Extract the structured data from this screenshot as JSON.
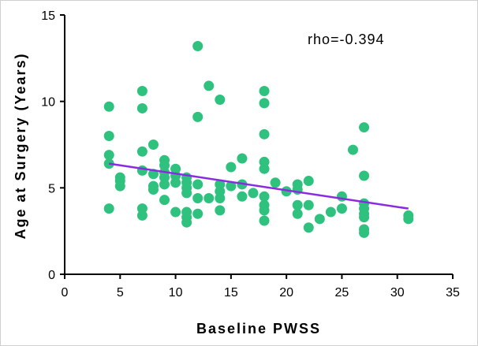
{
  "chart_data": {
    "type": "scatter",
    "xlabel": "Baseline PWSS",
    "ylabel": "Age at Surgery (Years)",
    "xlim": [
      0,
      35
    ],
    "ylim": [
      0,
      15
    ],
    "x_ticks": [
      0,
      5,
      10,
      15,
      20,
      25,
      30,
      35
    ],
    "y_ticks": [
      0,
      5,
      10,
      15
    ],
    "annotation": "rho=-0.394",
    "grid": false,
    "point_color": "#2ec27e",
    "trend_color": "#8a2be2",
    "points": [
      {
        "x": 4,
        "y": 9.7
      },
      {
        "x": 4,
        "y": 8.0
      },
      {
        "x": 4,
        "y": 6.9
      },
      {
        "x": 4,
        "y": 6.4
      },
      {
        "x": 4,
        "y": 3.8
      },
      {
        "x": 5,
        "y": 5.6
      },
      {
        "x": 5,
        "y": 5.4
      },
      {
        "x": 5,
        "y": 5.1
      },
      {
        "x": 7,
        "y": 10.6
      },
      {
        "x": 7,
        "y": 9.6
      },
      {
        "x": 7,
        "y": 7.1
      },
      {
        "x": 7,
        "y": 6.0
      },
      {
        "x": 7,
        "y": 3.8
      },
      {
        "x": 7,
        "y": 3.4
      },
      {
        "x": 8,
        "y": 7.5
      },
      {
        "x": 8,
        "y": 5.8
      },
      {
        "x": 8,
        "y": 5.1
      },
      {
        "x": 8,
        "y": 4.9
      },
      {
        "x": 9,
        "y": 6.6
      },
      {
        "x": 9,
        "y": 6.3
      },
      {
        "x": 9,
        "y": 5.9
      },
      {
        "x": 9,
        "y": 5.6
      },
      {
        "x": 9,
        "y": 5.2
      },
      {
        "x": 9,
        "y": 4.3
      },
      {
        "x": 10,
        "y": 6.1
      },
      {
        "x": 10,
        "y": 5.7
      },
      {
        "x": 10,
        "y": 5.3
      },
      {
        "x": 10,
        "y": 3.6
      },
      {
        "x": 11,
        "y": 5.6
      },
      {
        "x": 11,
        "y": 5.3
      },
      {
        "x": 11,
        "y": 5.0
      },
      {
        "x": 11,
        "y": 4.7
      },
      {
        "x": 11,
        "y": 3.6
      },
      {
        "x": 11,
        "y": 3.3
      },
      {
        "x": 11,
        "y": 3.0
      },
      {
        "x": 12,
        "y": 13.2
      },
      {
        "x": 12,
        "y": 9.1
      },
      {
        "x": 12,
        "y": 5.2
      },
      {
        "x": 12,
        "y": 4.4
      },
      {
        "x": 12,
        "y": 3.5
      },
      {
        "x": 13,
        "y": 10.9
      },
      {
        "x": 13,
        "y": 4.4
      },
      {
        "x": 14,
        "y": 10.1
      },
      {
        "x": 14,
        "y": 5.2
      },
      {
        "x": 14,
        "y": 4.8
      },
      {
        "x": 14,
        "y": 4.4
      },
      {
        "x": 14,
        "y": 3.7
      },
      {
        "x": 15,
        "y": 6.2
      },
      {
        "x": 15,
        "y": 5.1
      },
      {
        "x": 16,
        "y": 6.7
      },
      {
        "x": 16,
        "y": 5.2
      },
      {
        "x": 16,
        "y": 4.5
      },
      {
        "x": 17,
        "y": 4.7
      },
      {
        "x": 18,
        "y": 10.6
      },
      {
        "x": 18,
        "y": 9.9
      },
      {
        "x": 18,
        "y": 8.1
      },
      {
        "x": 18,
        "y": 6.5
      },
      {
        "x": 18,
        "y": 6.1
      },
      {
        "x": 18,
        "y": 4.5
      },
      {
        "x": 18,
        "y": 4.0
      },
      {
        "x": 18,
        "y": 3.7
      },
      {
        "x": 18,
        "y": 3.1
      },
      {
        "x": 19,
        "y": 5.3
      },
      {
        "x": 20,
        "y": 4.8
      },
      {
        "x": 21,
        "y": 5.2
      },
      {
        "x": 21,
        "y": 4.9
      },
      {
        "x": 21,
        "y": 4.0
      },
      {
        "x": 21,
        "y": 3.5
      },
      {
        "x": 22,
        "y": 5.4
      },
      {
        "x": 22,
        "y": 4.0
      },
      {
        "x": 22,
        "y": 2.7
      },
      {
        "x": 23,
        "y": 3.2
      },
      {
        "x": 24,
        "y": 3.6
      },
      {
        "x": 25,
        "y": 4.5
      },
      {
        "x": 25,
        "y": 3.8
      },
      {
        "x": 26,
        "y": 7.2
      },
      {
        "x": 27,
        "y": 8.5
      },
      {
        "x": 27,
        "y": 5.7
      },
      {
        "x": 27,
        "y": 4.1
      },
      {
        "x": 27,
        "y": 3.8
      },
      {
        "x": 27,
        "y": 3.5
      },
      {
        "x": 27,
        "y": 3.3
      },
      {
        "x": 27,
        "y": 2.6
      },
      {
        "x": 27,
        "y": 2.4
      },
      {
        "x": 31,
        "y": 3.4
      },
      {
        "x": 31,
        "y": 3.2
      }
    ],
    "trend_line": [
      {
        "x": 4,
        "y": 6.4
      },
      {
        "x": 31,
        "y": 3.8
      }
    ]
  }
}
